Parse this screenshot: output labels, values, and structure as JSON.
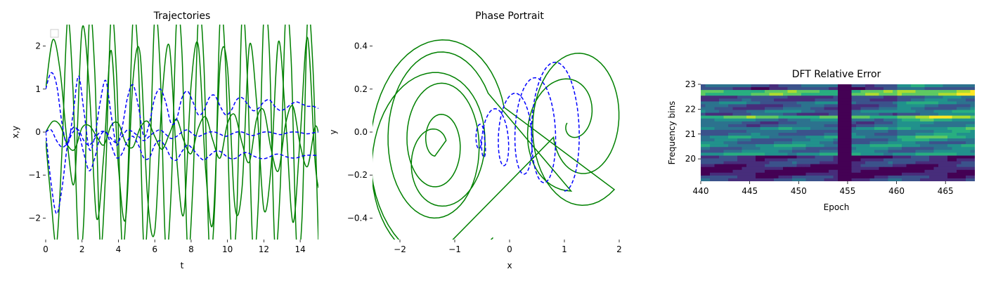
{
  "chart_data": [
    {
      "type": "line",
      "title": "Trajectories",
      "xlabel": "t",
      "ylabel": "x,y",
      "xlim": [
        0,
        15
      ],
      "ylim": [
        -2.5,
        2.5
      ],
      "xticks": [
        "0",
        "2",
        "4",
        "6",
        "8",
        "10",
        "12",
        "14"
      ],
      "yticks": [
        "−2",
        "−1",
        "0",
        "1",
        "2"
      ],
      "grid": false,
      "legend": "top-left (empty)",
      "series": [
        {
          "style": "solid",
          "color": "#008000",
          "x": [
            0,
            0.4,
            0.8,
            1.2,
            1.6,
            2,
            2.4,
            2.8,
            3.2,
            3.6,
            4,
            4.4,
            4.8,
            5.2,
            5.6,
            6,
            6.4,
            6.8,
            7.2,
            7.6,
            8,
            8.4,
            8.8,
            9.2,
            9.6,
            10,
            10.4,
            10.8,
            11.2,
            11.6,
            12,
            12.4,
            12.8,
            13.2,
            13.6,
            14,
            14.4,
            14.8,
            15
          ],
          "y": [
            0,
            0.25,
            0.15,
            -0.3,
            -0.4,
            0.1,
            0.15,
            -0.1,
            -0.3,
            0.15,
            0.2,
            -0.25,
            -0.35,
            0.1,
            0.25,
            -0.1,
            -0.4,
            -0.05,
            0.3,
            -0.2,
            -0.5,
            0.1,
            0.35,
            -0.2,
            -0.6,
            0.2,
            0.4,
            -0.25,
            -0.7,
            0.3,
            0.5,
            -0.4,
            -0.9,
            0.2,
            0.6,
            -0.3,
            -0.8,
            0.1,
            0
          ]
        },
        {
          "style": "solid",
          "color": "#008000",
          "x": [
            0,
            0.4,
            0.8,
            1.2,
            1.6,
            2,
            2.4,
            2.8,
            3.2,
            3.6,
            4,
            4.4,
            4.8,
            5.2,
            5.6,
            6,
            6.4,
            6.8,
            7.2,
            7.6,
            8,
            8.4,
            8.8,
            9.2,
            9.6,
            10,
            10.4,
            10.8,
            11.2,
            11.6,
            12,
            12.4,
            12.8,
            13.2,
            13.6,
            14,
            14.4,
            14.8,
            15
          ],
          "y": [
            1.0,
            2.15,
            1.4,
            -0.3,
            -1.1,
            2.4,
            1.0,
            -2.0,
            -0.5,
            1.9,
            -0.8,
            -2.0,
            1.2,
            1.8,
            -1.5,
            -2.3,
            0.8,
            2.0,
            -0.6,
            -1.9,
            1.1,
            2.0,
            -0.9,
            -2.1,
            1.6,
            1.5,
            -1.7,
            -1.3,
            2.0,
            0.7,
            -1.8,
            -0.8,
            2.1,
            0.3,
            -2.1,
            -0.1,
            2.2,
            -0.6,
            -1.3
          ]
        },
        {
          "style": "solid",
          "color": "#008000",
          "x": [
            0,
            0.3,
            0.6,
            0.9,
            1.2,
            1.5,
            1.8,
            2.1,
            2.4,
            2.7,
            3,
            3.3,
            3.6,
            3.9,
            4.2,
            4.5,
            4.8,
            5.1,
            5.4,
            5.7,
            6,
            6.3,
            6.6,
            6.9,
            7.2,
            7.5,
            7.8,
            8.1,
            8.4,
            8.7,
            9,
            9.3,
            9.6,
            9.9,
            10.2,
            10.5,
            10.8,
            11.1,
            11.4,
            11.7,
            12,
            12.3,
            12.6,
            12.9,
            13.2,
            13.5,
            13.8,
            14.1,
            14.4,
            14.7,
            15
          ],
          "y": [
            -0.2,
            -1.6,
            -2.6,
            -0.4,
            2.6,
            1.0,
            -2.6,
            -2.0,
            2.6,
            1.4,
            -2.6,
            -0.9,
            2.7,
            1.3,
            -2.6,
            -1.2,
            2.6,
            1.6,
            -2.7,
            -1.1,
            2.7,
            1.4,
            -2.7,
            -1.4,
            2.6,
            1.8,
            -2.7,
            -1.2,
            2.7,
            1.6,
            -2.7,
            -1.7,
            2.7,
            1.5,
            -2.6,
            -2.0,
            2.7,
            1.2,
            -2.7,
            -1.6,
            2.7,
            1.9,
            -2.6,
            -1.3,
            2.7,
            1.7,
            -2.6,
            -2.0,
            2.6,
            1.5,
            -2.5
          ]
        },
        {
          "style": "dashed",
          "color": "#0000ff",
          "x": [
            0,
            0.3,
            0.6,
            0.9,
            1.2,
            1.5,
            1.8,
            2.1,
            2.4,
            2.7,
            3,
            3.3,
            3.6,
            3.9,
            4.2,
            4.5,
            4.8,
            5.1,
            5.4,
            5.7,
            6,
            6.3,
            6.6,
            6.9,
            7.2,
            7.5,
            7.8,
            8.1,
            8.4,
            8.7,
            9,
            9.3,
            9.6,
            9.9,
            10.2,
            10.5,
            10.8,
            11.1,
            11.4,
            11.7,
            12,
            12.3,
            12.6,
            12.9,
            13.2,
            13.5,
            13.8,
            14.1,
            14.4,
            14.7,
            15
          ],
          "y": [
            1.0,
            1.38,
            1.1,
            0.2,
            -0.3,
            0.4,
            1.3,
            0.5,
            -0.4,
            -0.1,
            0.7,
            1.2,
            0.4,
            -0.3,
            0.1,
            0.8,
            1.1,
            0.6,
            -0.1,
            0.2,
            0.8,
            1.0,
            0.7,
            0.2,
            0.3,
            0.8,
            0.95,
            0.7,
            0.4,
            0.5,
            0.8,
            0.85,
            0.6,
            0.4,
            0.5,
            0.75,
            0.8,
            0.65,
            0.5,
            0.55,
            0.7,
            0.75,
            0.6,
            0.5,
            0.55,
            0.65,
            0.7,
            0.65,
            0.6,
            0.6,
            0.55
          ]
        },
        {
          "style": "dashed",
          "color": "#0000ff",
          "x": [
            0,
            0.3,
            0.6,
            0.9,
            1.2,
            1.5,
            1.8,
            2.1,
            2.4,
            2.7,
            3,
            3.3,
            3.6,
            3.9,
            4.2,
            4.5,
            4.8,
            5.1,
            5.4,
            5.7,
            6,
            6.3,
            6.6,
            6.9,
            7.2,
            7.5,
            7.8,
            8.1,
            8.4,
            8.7,
            9,
            9.3,
            9.6,
            9.9,
            10.2,
            10.5,
            10.8,
            11.1,
            11.4,
            11.7,
            12,
            12.3,
            12.6,
            12.9,
            13.2,
            13.5,
            13.8,
            14.1,
            14.4,
            14.7,
            15
          ],
          "y": [
            0,
            0.05,
            -0.2,
            -0.35,
            -0.25,
            0.0,
            0.05,
            -0.2,
            -0.3,
            -0.15,
            0.0,
            0.0,
            -0.15,
            -0.25,
            -0.1,
            0.05,
            0.0,
            -0.1,
            -0.2,
            -0.1,
            0.0,
            0.05,
            -0.05,
            -0.15,
            -0.1,
            0.0,
            0.05,
            -0.05,
            -0.1,
            -0.05,
            0.0,
            0.0,
            -0.05,
            -0.1,
            -0.05,
            0.0,
            0.0,
            -0.05,
            -0.08,
            -0.04,
            0.0,
            0.0,
            -0.03,
            -0.06,
            -0.03,
            0.0,
            0.0,
            -0.02,
            -0.04,
            -0.02,
            0.0
          ]
        },
        {
          "style": "dashed",
          "color": "#0000ff",
          "x": [
            0,
            0.3,
            0.6,
            0.9,
            1.2,
            1.5,
            1.8,
            2.1,
            2.4,
            2.7,
            3,
            3.3,
            3.6,
            3.9,
            4.2,
            4.5,
            4.8,
            5.1,
            5.4,
            5.7,
            6,
            6.3,
            6.6,
            6.9,
            7.2,
            7.5,
            7.8,
            8.1,
            8.4,
            8.7,
            9,
            9.3,
            9.6,
            9.9,
            10.2,
            10.5,
            10.8,
            11.1,
            11.4,
            11.7,
            12,
            12.3,
            12.6,
            12.9,
            13.2,
            13.5,
            13.8,
            14.1,
            14.4,
            14.7,
            15
          ],
          "y": [
            0,
            -1.2,
            -1.9,
            -1.3,
            -0.3,
            0.1,
            0.0,
            -0.5,
            -0.9,
            -0.6,
            -0.1,
            0.0,
            -0.3,
            -0.6,
            -0.5,
            -0.2,
            -0.1,
            -0.3,
            -0.6,
            -0.6,
            -0.3,
            -0.2,
            -0.35,
            -0.6,
            -0.65,
            -0.45,
            -0.3,
            -0.4,
            -0.55,
            -0.65,
            -0.55,
            -0.45,
            -0.45,
            -0.55,
            -0.62,
            -0.6,
            -0.5,
            -0.48,
            -0.55,
            -0.6,
            -0.62,
            -0.58,
            -0.52,
            -0.52,
            -0.57,
            -0.6,
            -0.6,
            -0.56,
            -0.54,
            -0.54,
            -0.55
          ]
        }
      ]
    },
    {
      "type": "line",
      "title": "Phase Portrait",
      "xlabel": "x",
      "ylabel": "y",
      "xlim": [
        -2.5,
        2.5
      ],
      "ylim": [
        -0.5,
        0.5
      ],
      "xticks": [
        "−2",
        "−1",
        "0",
        "1",
        "2"
      ],
      "yticks": [
        "−0.4",
        "−0.2",
        "0.0",
        "0.2",
        "0.4"
      ],
      "grid": false,
      "series": [
        {
          "style": "solid",
          "color": "#008000",
          "shape": "double-scroll",
          "center_left": [
            -1.3,
            -0.05
          ],
          "center_right": [
            1.3,
            0.05
          ]
        },
        {
          "style": "dashed",
          "color": "#0000ff",
          "shape": "decaying-spiral",
          "start": [
            1.0,
            0.0
          ],
          "end": [
            -0.55,
            -0.05
          ]
        }
      ]
    },
    {
      "type": "heatmap",
      "title": "DFT Relative Error",
      "xlabel": "Epoch",
      "ylabel": "Frequency bins",
      "xlim": [
        440,
        468
      ],
      "ylim": [
        19.1,
        23
      ],
      "xticks": [
        "440",
        "445",
        "450",
        "455",
        "460",
        "465"
      ],
      "yticks": [
        "20",
        "21",
        "22",
        "23"
      ],
      "colormap": "viridis",
      "dark_column_epoch": 454.8
    }
  ]
}
